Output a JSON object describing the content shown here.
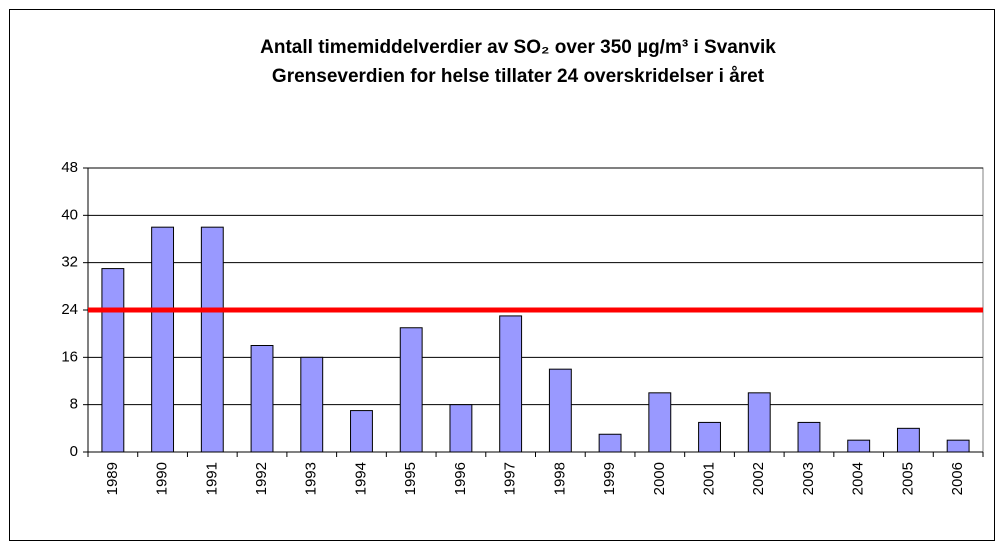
{
  "chart_data": {
    "type": "bar",
    "title": [
      "Antall timemiddelverdier av SO₂ over 350 µg/m³ i Svanvik",
      "Grenseverdien for helse tillater 24 overskridelser i året"
    ],
    "categories": [
      "1989",
      "1990",
      "1991",
      "1992",
      "1993",
      "1994",
      "1995",
      "1996",
      "1997",
      "1998",
      "1999",
      "2000",
      "2001",
      "2002",
      "2003",
      "2004",
      "2005",
      "2006"
    ],
    "values": [
      31,
      38,
      38,
      18,
      16,
      7,
      21,
      8,
      23,
      14,
      3,
      10,
      5,
      10,
      5,
      2,
      4,
      2
    ],
    "color": "#9999ff",
    "ylim": [
      0,
      48
    ],
    "yticks": [
      0,
      8,
      16,
      24,
      32,
      40,
      48
    ],
    "grid": true,
    "reference_line": {
      "value": 24,
      "color": "#ff0000"
    }
  }
}
